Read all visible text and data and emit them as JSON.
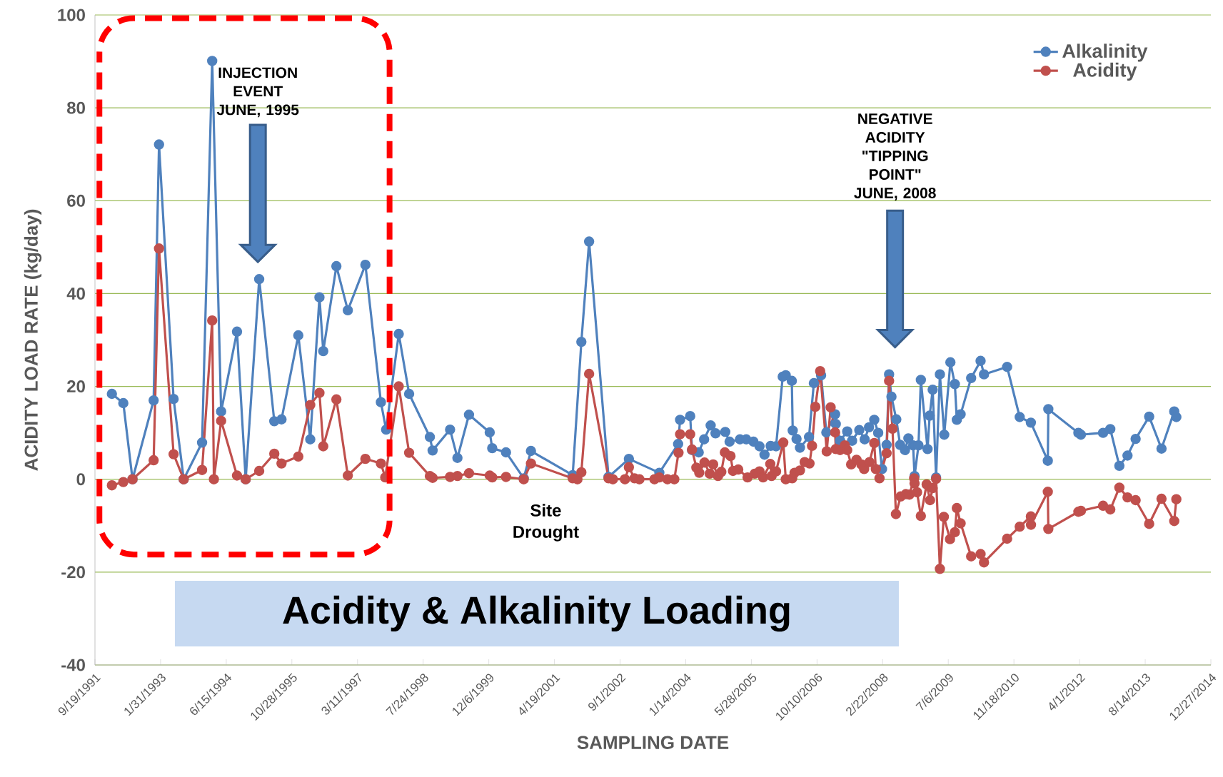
{
  "chart_data": {
    "type": "line",
    "title": "Acidity & Alkalinity Loading",
    "xlabel": "SAMPLING DATE",
    "ylabel": "ACIDITY LOAD RATE (kg/day)",
    "xlim": [
      "1991-09-19",
      "2014-12-27"
    ],
    "xticks": [
      {
        "value": "1991-09-19",
        "label": "9/19/1991"
      },
      {
        "value": "1993-01-31",
        "label": "1/31/1993"
      },
      {
        "value": "1994-06-15",
        "label": "6/15/1994"
      },
      {
        "value": "1995-10-28",
        "label": "10/28/1995"
      },
      {
        "value": "1997-03-11",
        "label": "3/11/1997"
      },
      {
        "value": "1998-07-24",
        "label": "7/24/1998"
      },
      {
        "value": "1999-12-06",
        "label": "12/6/1999"
      },
      {
        "value": "2001-04-19",
        "label": "4/19/2001"
      },
      {
        "value": "2002-09-01",
        "label": "9/1/2002"
      },
      {
        "value": "2004-01-14",
        "label": "1/14/2004"
      },
      {
        "value": "2005-05-28",
        "label": "5/28/2005"
      },
      {
        "value": "2006-10-10",
        "label": "10/10/2006"
      },
      {
        "value": "2008-02-22",
        "label": "2/22/2008"
      },
      {
        "value": "2009-07-06",
        "label": "7/6/2009"
      },
      {
        "value": "2010-11-18",
        "label": "11/18/2010"
      },
      {
        "value": "2012-04-01",
        "label": "4/1/2012"
      },
      {
        "value": "2013-08-14",
        "label": "8/14/2013"
      },
      {
        "value": "2014-12-27",
        "label": "12/27/2014"
      }
    ],
    "ylim": [
      -40,
      100
    ],
    "yticks": [
      -40,
      -20,
      0,
      20,
      40,
      60,
      80,
      100
    ],
    "grid": "y",
    "legend": "top right",
    "marker": "circle",
    "line_style": "solid",
    "series": [
      {
        "name": "Alkalinity",
        "color": "#4f81bd",
        "x": [
          "1992-01-26",
          "1992-04-22",
          "1992-07-01",
          "1992-12-09",
          "1993-01-19",
          "1993-05-10",
          "1993-07-26",
          "1993-12-13",
          "1994-02-28",
          "1994-05-07",
          "1994-09-05",
          "1994-11-10",
          "1995-02-21",
          "1995-06-16",
          "1995-08-10",
          "1995-12-16",
          "1996-03-16",
          "1996-05-25",
          "1996-06-23",
          "1996-10-01",
          "1996-12-27",
          "1997-05-10",
          "1997-09-05",
          "1997-10-15",
          "1998-01-19",
          "1998-04-08",
          "1998-09-13",
          "1998-10-04",
          "1999-02-14",
          "1999-04-11",
          "1999-07-08",
          "1999-12-13",
          "2000-01-01",
          "2000-04-15",
          "2000-08-28",
          "2000-10-22",
          "2001-09-05",
          "2001-11-10",
          "2002-01-08",
          "2002-06-05",
          "2002-11-07",
          "2003-06-27",
          "2003-11-17",
          "2003-12-02",
          "2004-02-17",
          "2004-03-02",
          "2004-04-22",
          "2004-06-02",
          "2004-07-22",
          "2004-08-28",
          "2004-11-10",
          "2004-12-13",
          "2005-03-02",
          "2005-04-19",
          "2005-06-13",
          "2005-07-29",
          "2005-09-05",
          "2005-10-22",
          "2005-12-02",
          "2006-01-22",
          "2006-02-14",
          "2006-04-01",
          "2006-04-08",
          "2006-05-07",
          "2006-06-02",
          "2006-08-10",
          "2006-09-16",
          "2006-11-10",
          "2006-12-20",
          "2007-02-25",
          "2007-03-02",
          "2007-04-04",
          "2007-05-28",
          "2007-07-04",
          "2007-08-28",
          "2007-10-08",
          "2007-11-10",
          "2007-12-20",
          "2008-01-19",
          "2008-02-17",
          "2008-03-23",
          "2008-04-11",
          "2008-04-29",
          "2008-06-05",
          "2008-07-04",
          "2008-08-10",
          "2008-09-05",
          "2008-10-11",
          "2008-10-22",
          "2008-11-21",
          "2008-12-09",
          "2009-01-29",
          "2009-02-14",
          "2009-03-09",
          "2009-04-04",
          "2009-05-03",
          "2009-06-05",
          "2009-07-22",
          "2009-08-25",
          "2009-09-09",
          "2009-10-08",
          "2009-12-27",
          "2010-03-09",
          "2010-04-04",
          "2010-09-27",
          "2011-01-01",
          "2011-03-27",
          "2011-08-03",
          "2011-08-07",
          "2012-03-23",
          "2012-04-11",
          "2012-09-27",
          "2012-11-21",
          "2013-01-29",
          "2013-04-01",
          "2013-06-02",
          "2013-09-13",
          "2013-12-16",
          "2014-03-23",
          "2014-04-08"
        ],
        "values": [
          18.4,
          16.4,
          0,
          17.0,
          72.1,
          17.3,
          0,
          7.9,
          90.1,
          14.6,
          31.8,
          0,
          43.1,
          12.5,
          12.9,
          31.0,
          8.6,
          39.2,
          27.6,
          45.9,
          36.4,
          46.2,
          16.6,
          10.7,
          31.3,
          18.4,
          9.1,
          6.2,
          10.7,
          4.6,
          13.9,
          10.1,
          6.7,
          5.8,
          0.2,
          6.1,
          0.9,
          29.6,
          51.2,
          0.5,
          4.4,
          1.4,
          7.6,
          12.8,
          13.6,
          6.3,
          5.8,
          8.6,
          11.6,
          9.9,
          10.2,
          8.1,
          8.6,
          8.6,
          8.1,
          7.1,
          5.3,
          7.2,
          7.1,
          22.1,
          22.4,
          21.2,
          10.5,
          8.7,
          6.8,
          9.1,
          20.7,
          22.4,
          10.1,
          14.0,
          11.9,
          8.3,
          10.3,
          8.3,
          10.6,
          8.6,
          11.2,
          12.8,
          10.0,
          2.2,
          7.4,
          22.6,
          17.8,
          12.9,
          7.4,
          6.3,
          8.8,
          7.3,
          0.7,
          7.3,
          21.4,
          6.5,
          13.7,
          19.3,
          0.4,
          22.6,
          9.6,
          25.2,
          20.5,
          12.8,
          14.0,
          21.8,
          25.5,
          22.6,
          24.2,
          13.4,
          12.2,
          4.0,
          15.1,
          10.0,
          9.6,
          10.0,
          10.8,
          2.9,
          5.1,
          8.7,
          13.5,
          6.6,
          14.6,
          13.4
        ]
      },
      {
        "name": "Acidity",
        "color": "#c0504d",
        "x": [
          "1992-01-26",
          "1992-04-22",
          "1992-07-01",
          "1992-12-09",
          "1993-01-19",
          "1993-05-10",
          "1993-07-26",
          "1993-12-13",
          "1994-02-28",
          "1994-03-13",
          "1994-05-07",
          "1994-09-05",
          "1994-11-10",
          "1995-02-21",
          "1995-06-16",
          "1995-08-10",
          "1995-12-16",
          "1996-03-16",
          "1996-05-25",
          "1996-06-23",
          "1996-10-01",
          "1996-12-27",
          "1997-05-10",
          "1997-09-05",
          "1997-10-08",
          "1998-01-19",
          "1998-04-08",
          "1998-09-13",
          "1998-10-04",
          "1999-02-14",
          "1999-04-11",
          "1999-07-08",
          "1999-12-13",
          "2000-01-01",
          "2000-04-15",
          "2000-08-28",
          "2000-10-22",
          "2001-09-05",
          "2001-10-11",
          "2001-11-10",
          "2002-01-08",
          "2002-06-05",
          "2002-07-08",
          "2002-10-08",
          "2002-11-07",
          "2002-12-20",
          "2003-01-26",
          "2003-05-21",
          "2003-06-27",
          "2003-08-28",
          "2003-10-19",
          "2003-11-20",
          "2003-12-02",
          "2004-02-17",
          "2004-03-02",
          "2004-04-04",
          "2004-04-26",
          "2004-06-05",
          "2004-07-15",
          "2004-08-10",
          "2004-09-16",
          "2004-10-11",
          "2004-11-07",
          "2004-12-20",
          "2005-01-08",
          "2005-02-17",
          "2005-04-29",
          "2005-06-23",
          "2005-07-29",
          "2005-08-25",
          "2005-10-19",
          "2005-10-29",
          "2005-12-02",
          "2006-01-26",
          "2006-02-14",
          "2006-04-04",
          "2006-04-22",
          "2006-06-02",
          "2006-07-08",
          "2006-08-14",
          "2006-09-02",
          "2006-09-27",
          "2006-11-03",
          "2006-12-23",
          "2007-01-22",
          "2007-02-25",
          "2007-03-02",
          "2007-04-04",
          "2007-05-10",
          "2007-05-28",
          "2007-06-27",
          "2007-08-07",
          "2007-09-13",
          "2007-10-04",
          "2007-11-14",
          "2007-12-20",
          "2008-01-01",
          "2008-01-29",
          "2008-03-23",
          "2008-04-11",
          "2008-05-07",
          "2008-06-02",
          "2008-07-08",
          "2008-08-17",
          "2008-09-13",
          "2008-10-19",
          "2008-10-22",
          "2008-11-10",
          "2008-12-09",
          "2009-01-22",
          "2009-02-17",
          "2009-03-09",
          "2009-04-04",
          "2009-05-03",
          "2009-06-02",
          "2009-07-19",
          "2009-08-25",
          "2009-09-09",
          "2009-10-08",
          "2009-12-27",
          "2010-03-09",
          "2010-04-04",
          "2010-09-27",
          "2011-01-01",
          "2011-03-27",
          "2011-03-28",
          "2011-08-03",
          "2011-08-07",
          "2012-03-23",
          "2012-04-11",
          "2012-09-27",
          "2012-11-21",
          "2013-01-29",
          "2013-04-01",
          "2013-06-02",
          "2013-09-13",
          "2013-12-16",
          "2014-03-23",
          "2014-04-08"
        ],
        "values": [
          -1.3,
          -0.6,
          0,
          4.1,
          49.7,
          5.4,
          0,
          2.0,
          34.2,
          0,
          12.6,
          0.8,
          0,
          1.8,
          5.5,
          3.4,
          4.9,
          16.0,
          18.6,
          7.1,
          17.2,
          0.8,
          4.4,
          3.4,
          0.4,
          20.0,
          5.7,
          0.7,
          0.3,
          0.5,
          0.7,
          1.3,
          0.8,
          0.4,
          0.5,
          0,
          3.4,
          0.2,
          0,
          1.5,
          22.7,
          0.2,
          0,
          0,
          2.6,
          0.2,
          0,
          0,
          0.4,
          0,
          0,
          5.7,
          9.7,
          9.7,
          6.4,
          2.5,
          1.4,
          3.6,
          1.2,
          3.2,
          0.7,
          1.6,
          5.8,
          5.0,
          1.8,
          2.1,
          0.4,
          1.2,
          1.7,
          0.4,
          3.3,
          0.7,
          1.7,
          7.9,
          0,
          0.2,
          1.4,
          1.9,
          3.7,
          3.4,
          7.2,
          15.6,
          23.3,
          6.0,
          15.5,
          10.1,
          6.5,
          6.3,
          7.3,
          6.3,
          3.2,
          4.2,
          3.2,
          2.2,
          3.7,
          7.8,
          2.2,
          0.2,
          5.6,
          21.2,
          10.9,
          -7.5,
          -3.7,
          -3.2,
          -3.3,
          0.2,
          -0.9,
          -2.8,
          -7.9,
          -1.1,
          -4.5,
          -1.9,
          0.1,
          -19.3,
          -8.1,
          -12.9,
          -11.4,
          -6.2,
          -9.5,
          -16.6,
          -16.1,
          -17.9,
          -12.8,
          -10.2,
          -8.0,
          -9.8,
          -2.7,
          -10.7,
          -7.0,
          -6.8,
          -5.7,
          -6.5,
          -1.8,
          -3.9,
          -4.5,
          -9.6,
          -4.2,
          -9.0,
          -4.3
        ]
      }
    ],
    "annotations": [
      "INJECTION EVENT JUNE, 1995",
      "NEGATIVE ACIDITY \"TIPPING POINT\" JUNE, 2008",
      "Site Drought"
    ]
  }
}
